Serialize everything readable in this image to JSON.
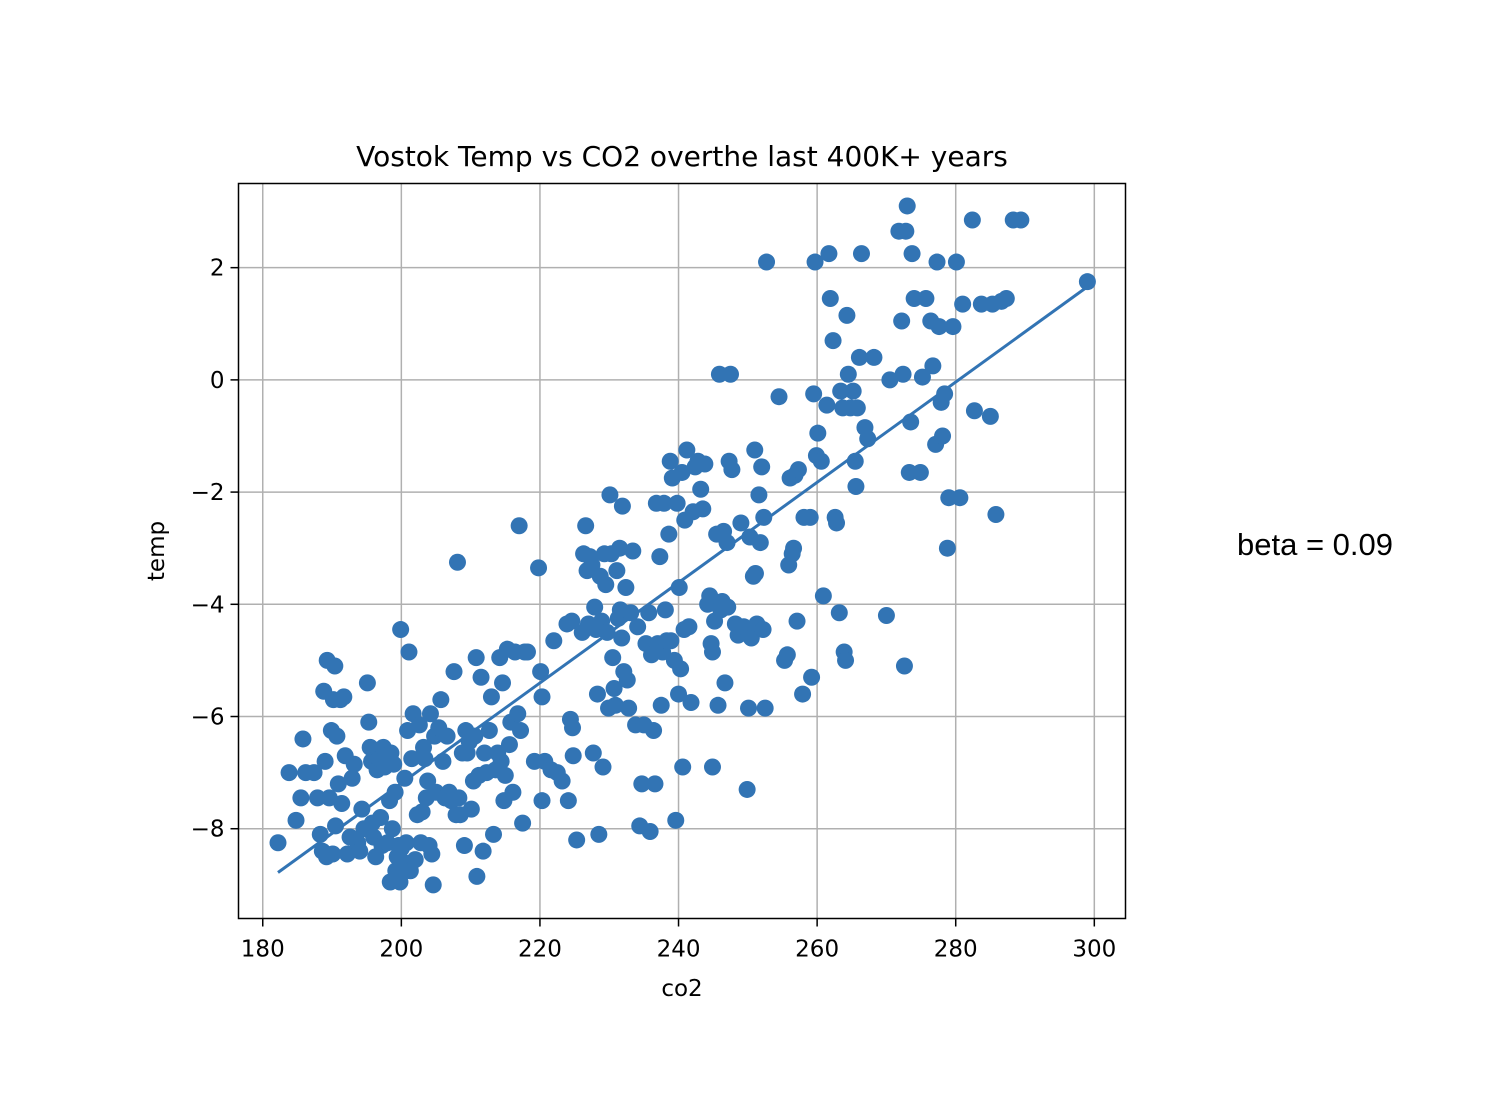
{
  "annotation": {
    "beta_text": "beta = 0.09"
  },
  "chart_data": {
    "type": "scatter",
    "title": "Vostok Temp vs CO2 overthe last 400K+ years",
    "xlabel": "co2",
    "ylabel": "temp",
    "xlim": [
      176.5,
      304.5
    ],
    "ylim": [
      -9.6,
      3.5
    ],
    "xticks": [
      180,
      200,
      220,
      240,
      260,
      280,
      300
    ],
    "yticks": [
      -8,
      -6,
      -4,
      -2,
      0,
      2
    ],
    "grid": true,
    "marker_color": "#3274b4",
    "fit_line": {
      "x": [
        182.2,
        299
      ],
      "y": [
        -8.78,
        1.66
      ]
    },
    "points": [
      [
        182.2,
        -8.25
      ],
      [
        183.8,
        -7.0
      ],
      [
        184.8,
        -7.85
      ],
      [
        185.5,
        -7.45
      ],
      [
        186.2,
        -7.0
      ],
      [
        185.8,
        -6.4
      ],
      [
        187.4,
        -7.0
      ],
      [
        187.9,
        -7.45
      ],
      [
        188.3,
        -8.1
      ],
      [
        188.6,
        -8.4
      ],
      [
        188.8,
        -5.55
      ],
      [
        189.0,
        -6.8
      ],
      [
        189.2,
        -8.5
      ],
      [
        189.6,
        -7.45
      ],
      [
        189.9,
        -6.25
      ],
      [
        189.3,
        -5.0
      ],
      [
        190.2,
        -5.7
      ],
      [
        190.5,
        -7.95
      ],
      [
        190.7,
        -6.35
      ],
      [
        190.9,
        -7.2
      ],
      [
        190.1,
        -8.45
      ],
      [
        190.4,
        -5.1
      ],
      [
        191.2,
        -5.7
      ],
      [
        191.4,
        -7.55
      ],
      [
        191.7,
        -5.65
      ],
      [
        191.9,
        -6.7
      ],
      [
        192.2,
        -8.45
      ],
      [
        192.6,
        -8.15
      ],
      [
        192.9,
        -7.1
      ],
      [
        193.2,
        -6.85
      ],
      [
        193.7,
        -8.25
      ],
      [
        194.0,
        -8.4
      ],
      [
        194.3,
        -7.65
      ],
      [
        194.6,
        -8.0
      ],
      [
        195.1,
        -5.4
      ],
      [
        195.3,
        -6.1
      ],
      [
        195.5,
        -6.55
      ],
      [
        195.7,
        -6.8
      ],
      [
        195.8,
        -7.9
      ],
      [
        196.0,
        -8.15
      ],
      [
        196.3,
        -8.5
      ],
      [
        196.5,
        -6.95
      ],
      [
        196.7,
        -6.6
      ],
      [
        196.8,
        -6.75
      ],
      [
        197.0,
        -7.8
      ],
      [
        197.2,
        -8.3
      ],
      [
        197.4,
        -6.55
      ],
      [
        197.6,
        -6.9
      ],
      [
        197.8,
        -6.7
      ],
      [
        198.0,
        -8.25
      ],
      [
        198.3,
        -7.5
      ],
      [
        198.5,
        -6.65
      ],
      [
        198.7,
        -8.0
      ],
      [
        198.9,
        -6.85
      ],
      [
        199.1,
        -7.35
      ],
      [
        198.4,
        -8.95
      ],
      [
        199.2,
        -8.75
      ],
      [
        199.4,
        -8.5
      ],
      [
        199.6,
        -8.3
      ],
      [
        199.8,
        -8.95
      ],
      [
        199.9,
        -4.45
      ],
      [
        200.0,
        -8.35
      ],
      [
        200.3,
        -8.6
      ],
      [
        200.5,
        -7.1
      ],
      [
        200.7,
        -8.25
      ],
      [
        200.9,
        -6.25
      ],
      [
        201.1,
        -4.85
      ],
      [
        201.3,
        -8.75
      ],
      [
        201.5,
        -6.75
      ],
      [
        201.7,
        -5.95
      ],
      [
        202.0,
        -8.55
      ],
      [
        202.3,
        -7.75
      ],
      [
        202.6,
        -6.15
      ],
      [
        202.8,
        -8.25
      ],
      [
        203.0,
        -7.7
      ],
      [
        203.2,
        -6.55
      ],
      [
        203.4,
        -6.75
      ],
      [
        203.6,
        -7.45
      ],
      [
        203.8,
        -7.15
      ],
      [
        204.0,
        -8.3
      ],
      [
        204.2,
        -5.95
      ],
      [
        204.4,
        -8.45
      ],
      [
        204.6,
        -9.0
      ],
      [
        204.8,
        -6.35
      ],
      [
        205.0,
        -7.35
      ],
      [
        205.4,
        -6.2
      ],
      [
        205.7,
        -5.7
      ],
      [
        206.0,
        -6.8
      ],
      [
        206.3,
        -7.45
      ],
      [
        206.6,
        -6.35
      ],
      [
        206.9,
        -7.35
      ],
      [
        207.2,
        -7.5
      ],
      [
        207.6,
        -5.2
      ],
      [
        207.9,
        -7.75
      ],
      [
        208.1,
        -3.25
      ],
      [
        208.3,
        -7.45
      ],
      [
        208.5,
        -7.75
      ],
      [
        208.8,
        -6.65
      ],
      [
        209.1,
        -8.3
      ],
      [
        209.3,
        -6.25
      ],
      [
        209.5,
        -6.65
      ],
      [
        209.8,
        -6.45
      ],
      [
        210.1,
        -7.65
      ],
      [
        210.4,
        -7.15
      ],
      [
        210.6,
        -6.35
      ],
      [
        210.8,
        -4.95
      ],
      [
        210.9,
        -8.85
      ],
      [
        211.2,
        -7.05
      ],
      [
        211.5,
        -5.3
      ],
      [
        211.8,
        -8.4
      ],
      [
        212.0,
        -6.65
      ],
      [
        212.3,
        -7.0
      ],
      [
        212.7,
        -6.25
      ],
      [
        213.0,
        -5.65
      ],
      [
        213.3,
        -8.1
      ],
      [
        213.6,
        -6.95
      ],
      [
        213.9,
        -6.65
      ],
      [
        214.2,
        -4.95
      ],
      [
        214.4,
        -6.8
      ],
      [
        214.6,
        -5.4
      ],
      [
        214.8,
        -7.5
      ],
      [
        215.0,
        -7.05
      ],
      [
        215.3,
        -4.8
      ],
      [
        215.6,
        -6.5
      ],
      [
        215.8,
        -6.1
      ],
      [
        216.1,
        -7.35
      ],
      [
        216.4,
        -4.85
      ],
      [
        216.8,
        -5.95
      ],
      [
        217.0,
        -2.6
      ],
      [
        217.2,
        -6.25
      ],
      [
        217.5,
        -7.9
      ],
      [
        217.8,
        -4.85
      ],
      [
        218.2,
        -4.85
      ],
      [
        219.2,
        -6.8
      ],
      [
        219.8,
        -3.35
      ],
      [
        220.1,
        -5.2
      ],
      [
        220.3,
        -5.65
      ],
      [
        220.3,
        -7.5
      ],
      [
        220.7,
        -6.8
      ],
      [
        221.6,
        -6.95
      ],
      [
        222.0,
        -4.65
      ],
      [
        222.5,
        -7.0
      ],
      [
        223.2,
        -7.15
      ],
      [
        223.9,
        -4.35
      ],
      [
        224.1,
        -7.5
      ],
      [
        224.4,
        -6.05
      ],
      [
        224.6,
        -4.3
      ],
      [
        224.8,
        -6.7
      ],
      [
        224.7,
        -6.2
      ],
      [
        225.3,
        -8.2
      ],
      [
        226.1,
        -4.5
      ],
      [
        226.3,
        -3.1
      ],
      [
        226.6,
        -2.6
      ],
      [
        226.8,
        -3.4
      ],
      [
        227.0,
        -4.35
      ],
      [
        227.2,
        -3.15
      ],
      [
        227.5,
        -3.3
      ],
      [
        227.7,
        -6.65
      ],
      [
        227.9,
        -4.05
      ],
      [
        228.1,
        -4.45
      ],
      [
        228.3,
        -5.6
      ],
      [
        228.5,
        -8.1
      ],
      [
        228.7,
        -3.5
      ],
      [
        228.9,
        -4.3
      ],
      [
        229.1,
        -6.9
      ],
      [
        229.3,
        -3.1
      ],
      [
        229.5,
        -3.65
      ],
      [
        229.7,
        -4.5
      ],
      [
        229.9,
        -5.85
      ],
      [
        230.1,
        -2.05
      ],
      [
        230.3,
        -3.1
      ],
      [
        230.5,
        -4.95
      ],
      [
        230.7,
        -5.5
      ],
      [
        230.9,
        -5.8
      ],
      [
        231.1,
        -3.4
      ],
      [
        231.3,
        -4.25
      ],
      [
        231.5,
        -3.0
      ],
      [
        231.6,
        -4.1
      ],
      [
        231.8,
        -4.6
      ],
      [
        231.9,
        -2.25
      ],
      [
        232.1,
        -5.2
      ],
      [
        232.4,
        -3.7
      ],
      [
        232.6,
        -5.35
      ],
      [
        232.8,
        -5.85
      ],
      [
        233.1,
        -4.15
      ],
      [
        233.4,
        -3.05
      ],
      [
        233.8,
        -6.15
      ],
      [
        234.1,
        -4.4
      ],
      [
        234.4,
        -7.95
      ],
      [
        234.7,
        -7.2
      ],
      [
        235.0,
        -6.15
      ],
      [
        235.3,
        -4.7
      ],
      [
        235.7,
        -4.15
      ],
      [
        235.9,
        -8.05
      ],
      [
        236.1,
        -4.9
      ],
      [
        236.4,
        -6.25
      ],
      [
        236.6,
        -7.2
      ],
      [
        236.8,
        -2.2
      ],
      [
        237.0,
        -4.7
      ],
      [
        237.3,
        -3.15
      ],
      [
        237.5,
        -5.8
      ],
      [
        237.7,
        -4.85
      ],
      [
        237.9,
        -2.2
      ],
      [
        238.1,
        -4.1
      ],
      [
        238.3,
        -4.65
      ],
      [
        238.6,
        -2.75
      ],
      [
        238.8,
        -1.45
      ],
      [
        238.9,
        -4.65
      ],
      [
        239.1,
        -1.75
      ],
      [
        239.4,
        -5.0
      ],
      [
        239.6,
        -7.85
      ],
      [
        239.8,
        -2.2
      ],
      [
        240.0,
        -5.6
      ],
      [
        240.1,
        -3.7
      ],
      [
        240.3,
        -5.15
      ],
      [
        240.5,
        -1.65
      ],
      [
        240.6,
        -6.9
      ],
      [
        240.8,
        -4.45
      ],
      [
        240.9,
        -2.5
      ],
      [
        241.2,
        -1.25
      ],
      [
        241.5,
        -4.4
      ],
      [
        241.8,
        -5.75
      ],
      [
        242.1,
        -2.35
      ],
      [
        242.4,
        -1.55
      ],
      [
        242.8,
        -1.45
      ],
      [
        243.2,
        -1.95
      ],
      [
        243.5,
        -2.3
      ],
      [
        243.8,
        -1.5
      ],
      [
        244.2,
        -4.0
      ],
      [
        244.5,
        -3.85
      ],
      [
        244.7,
        -4.7
      ],
      [
        244.9,
        -4.85
      ],
      [
        244.9,
        -6.9
      ],
      [
        245.2,
        -4.3
      ],
      [
        245.5,
        -2.75
      ],
      [
        245.7,
        -5.8
      ],
      [
        245.9,
        0.1
      ],
      [
        246.1,
        -4.1
      ],
      [
        246.3,
        -3.95
      ],
      [
        246.5,
        -2.7
      ],
      [
        246.7,
        -5.4
      ],
      [
        247.0,
        -2.9
      ],
      [
        247.1,
        -4.05
      ],
      [
        247.3,
        -1.45
      ],
      [
        247.5,
        0.1
      ],
      [
        247.7,
        -1.6
      ],
      [
        248.2,
        -4.35
      ],
      [
        248.6,
        -4.55
      ],
      [
        249.0,
        -2.55
      ],
      [
        249.4,
        -4.4
      ],
      [
        249.9,
        -7.3
      ],
      [
        250.1,
        -5.85
      ],
      [
        250.3,
        -2.8
      ],
      [
        250.5,
        -4.6
      ],
      [
        250.8,
        -3.5
      ],
      [
        251.0,
        -1.25
      ],
      [
        251.1,
        -3.45
      ],
      [
        251.3,
        -4.35
      ],
      [
        251.6,
        -2.05
      ],
      [
        251.8,
        -2.9
      ],
      [
        252.0,
        -1.55
      ],
      [
        252.2,
        -4.45
      ],
      [
        252.3,
        -2.45
      ],
      [
        252.5,
        -5.85
      ],
      [
        252.7,
        2.1
      ],
      [
        254.5,
        -0.3
      ],
      [
        255.3,
        -5.0
      ],
      [
        255.7,
        -4.9
      ],
      [
        255.9,
        -3.3
      ],
      [
        256.1,
        -1.75
      ],
      [
        256.4,
        -3.1
      ],
      [
        256.6,
        -3.0
      ],
      [
        256.8,
        -1.7
      ],
      [
        257.1,
        -4.3
      ],
      [
        257.3,
        -1.6
      ],
      [
        257.9,
        -5.6
      ],
      [
        258.1,
        -2.45
      ],
      [
        259.0,
        -2.45
      ],
      [
        259.2,
        -5.3
      ],
      [
        259.5,
        -0.25
      ],
      [
        259.7,
        2.1
      ],
      [
        259.9,
        -1.35
      ],
      [
        260.1,
        -0.95
      ],
      [
        260.6,
        -1.45
      ],
      [
        260.9,
        -3.85
      ],
      [
        261.4,
        -0.45
      ],
      [
        261.7,
        2.25
      ],
      [
        261.9,
        1.45
      ],
      [
        262.3,
        0.7
      ],
      [
        262.6,
        -2.45
      ],
      [
        262.8,
        -2.55
      ],
      [
        263.2,
        -4.15
      ],
      [
        263.4,
        -0.2
      ],
      [
        263.7,
        -0.5
      ],
      [
        263.9,
        -4.85
      ],
      [
        264.1,
        -5.0
      ],
      [
        264.3,
        1.15
      ],
      [
        264.5,
        0.1
      ],
      [
        264.8,
        -0.5
      ],
      [
        265.2,
        -0.2
      ],
      [
        265.5,
        -1.45
      ],
      [
        265.6,
        -1.9
      ],
      [
        265.8,
        -0.5
      ],
      [
        266.1,
        0.4
      ],
      [
        266.4,
        2.25
      ],
      [
        266.9,
        -0.85
      ],
      [
        267.3,
        -1.05
      ],
      [
        268.2,
        0.4
      ],
      [
        270.0,
        -4.2
      ],
      [
        270.5,
        0.0
      ],
      [
        271.8,
        2.65
      ],
      [
        272.2,
        1.05
      ],
      [
        272.4,
        0.1
      ],
      [
        272.6,
        -5.1
      ],
      [
        272.8,
        2.65
      ],
      [
        273.0,
        3.1
      ],
      [
        273.3,
        -1.65
      ],
      [
        273.5,
        -0.75
      ],
      [
        273.7,
        2.25
      ],
      [
        274.0,
        1.45
      ],
      [
        274.9,
        -1.65
      ],
      [
        275.2,
        0.05
      ],
      [
        275.7,
        1.45
      ],
      [
        276.4,
        1.05
      ],
      [
        276.7,
        0.25
      ],
      [
        277.1,
        -1.15
      ],
      [
        277.3,
        2.1
      ],
      [
        277.6,
        0.95
      ],
      [
        277.9,
        -0.4
      ],
      [
        278.1,
        -1.0
      ],
      [
        278.4,
        -0.25
      ],
      [
        278.8,
        -3.0
      ],
      [
        279.0,
        -2.1
      ],
      [
        279.6,
        0.95
      ],
      [
        280.1,
        2.1
      ],
      [
        280.6,
        -2.1
      ],
      [
        281.0,
        1.35
      ],
      [
        282.4,
        2.85
      ],
      [
        282.7,
        -0.55
      ],
      [
        283.7,
        1.35
      ],
      [
        285.0,
        -0.65
      ],
      [
        285.3,
        1.35
      ],
      [
        285.8,
        -2.4
      ],
      [
        286.6,
        1.4
      ],
      [
        287.3,
        1.45
      ],
      [
        288.3,
        2.85
      ],
      [
        289.4,
        2.85
      ],
      [
        299.0,
        1.75
      ]
    ]
  }
}
